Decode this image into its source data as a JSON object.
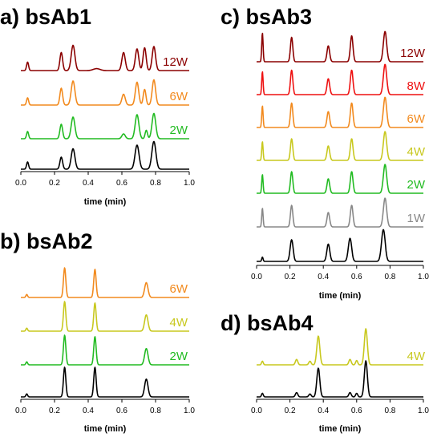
{
  "colors": {
    "12W": "#8b0000",
    "8W": "#ee1111",
    "6W": "#f28a1e",
    "4W": "#c8c81e",
    "2W": "#22bb22",
    "1W": "#888888",
    "base": "#000000"
  },
  "chart_data": [
    {
      "id": "a",
      "type": "line",
      "title": "a) bsAb1",
      "xlabel": "time (min)",
      "xlim": [
        0,
        1.0
      ],
      "xticks": [
        "0.0",
        "0.2",
        "0.4",
        "0.6",
        "0.8",
        "1.0"
      ],
      "series": [
        {
          "name": "12W",
          "color": "12W",
          "peaks": [
            [
              0.04,
              0.35,
              0.006
            ],
            [
              0.24,
              0.75,
              0.008
            ],
            [
              0.31,
              1.05,
              0.011
            ],
            [
              0.45,
              0.08,
              0.02
            ],
            [
              0.61,
              0.75,
              0.01
            ],
            [
              0.69,
              0.9,
              0.01
            ],
            [
              0.735,
              0.95,
              0.009
            ],
            [
              0.79,
              1.0,
              0.01
            ]
          ]
        },
        {
          "name": "6W",
          "color": "6W",
          "peaks": [
            [
              0.04,
              0.3,
              0.006
            ],
            [
              0.24,
              0.7,
              0.008
            ],
            [
              0.31,
              1.0,
              0.011
            ],
            [
              0.61,
              0.45,
              0.01
            ],
            [
              0.69,
              0.95,
              0.01
            ],
            [
              0.735,
              0.65,
              0.008
            ],
            [
              0.79,
              1.05,
              0.01
            ]
          ]
        },
        {
          "name": "2W",
          "color": "2W",
          "peaks": [
            [
              0.04,
              0.3,
              0.006
            ],
            [
              0.24,
              0.6,
              0.008
            ],
            [
              0.31,
              0.9,
              0.011
            ],
            [
              0.61,
              0.2,
              0.01
            ],
            [
              0.69,
              1.0,
              0.011
            ],
            [
              0.745,
              0.35,
              0.007
            ],
            [
              0.79,
              1.05,
              0.011
            ]
          ]
        },
        {
          "name": "",
          "color": "base",
          "peaks": [
            [
              0.04,
              0.3,
              0.006
            ],
            [
              0.24,
              0.5,
              0.008
            ],
            [
              0.31,
              0.85,
              0.011
            ],
            [
              0.69,
              1.0,
              0.012
            ],
            [
              0.79,
              1.15,
              0.012
            ]
          ]
        }
      ]
    },
    {
      "id": "b",
      "type": "line",
      "title": "b) bsAb2",
      "xlabel": "time (min)",
      "xlim": [
        0,
        1.0
      ],
      "xticks": [
        "0.0",
        "0.2",
        "0.4",
        "0.6",
        "0.8",
        "1.0"
      ],
      "series": [
        {
          "name": "6W",
          "color": "6W",
          "peaks": [
            [
              0.035,
              0.1,
              0.005
            ],
            [
              0.26,
              1.0,
              0.007
            ],
            [
              0.44,
              0.95,
              0.007
            ],
            [
              0.745,
              0.5,
              0.01
            ]
          ]
        },
        {
          "name": "4W",
          "color": "4W",
          "peaks": [
            [
              0.035,
              0.1,
              0.005
            ],
            [
              0.26,
              1.0,
              0.007
            ],
            [
              0.44,
              0.95,
              0.007
            ],
            [
              0.745,
              0.55,
              0.01
            ]
          ]
        },
        {
          "name": "2W",
          "color": "2W",
          "peaks": [
            [
              0.035,
              0.1,
              0.005
            ],
            [
              0.26,
              1.0,
              0.007
            ],
            [
              0.44,
              0.95,
              0.007
            ],
            [
              0.745,
              0.55,
              0.01
            ]
          ]
        },
        {
          "name": "",
          "color": "base",
          "peaks": [
            [
              0.035,
              0.1,
              0.005
            ],
            [
              0.26,
              1.0,
              0.007
            ],
            [
              0.44,
              1.0,
              0.007
            ],
            [
              0.745,
              0.6,
              0.01
            ]
          ]
        }
      ]
    },
    {
      "id": "c",
      "type": "line",
      "title": "c) bsAb3",
      "xlabel": "time (min)",
      "xlim": [
        0,
        1.0
      ],
      "xticks": [
        "0.0",
        "0.2",
        "0.4",
        "0.6",
        "0.8",
        "1.0"
      ],
      "series": [
        {
          "name": "12W",
          "color": "12W",
          "peaks": [
            [
              0.035,
              1.0,
              0.004
            ],
            [
              0.21,
              0.85,
              0.007
            ],
            [
              0.43,
              0.55,
              0.008
            ],
            [
              0.57,
              0.9,
              0.008
            ],
            [
              0.77,
              1.05,
              0.01
            ]
          ]
        },
        {
          "name": "8W",
          "color": "8W",
          "peaks": [
            [
              0.035,
              0.8,
              0.004
            ],
            [
              0.21,
              0.85,
              0.007
            ],
            [
              0.43,
              0.55,
              0.008
            ],
            [
              0.57,
              0.85,
              0.008
            ],
            [
              0.77,
              1.05,
              0.01
            ]
          ]
        },
        {
          "name": "6W",
          "color": "6W",
          "peaks": [
            [
              0.035,
              0.75,
              0.004
            ],
            [
              0.21,
              0.85,
              0.007
            ],
            [
              0.43,
              0.55,
              0.008
            ],
            [
              0.57,
              0.85,
              0.008
            ],
            [
              0.77,
              1.05,
              0.01
            ]
          ]
        },
        {
          "name": "4W",
          "color": "4W",
          "peaks": [
            [
              0.035,
              0.65,
              0.004
            ],
            [
              0.21,
              0.75,
              0.007
            ],
            [
              0.43,
              0.5,
              0.008
            ],
            [
              0.57,
              0.75,
              0.008
            ],
            [
              0.77,
              1.0,
              0.01
            ]
          ]
        },
        {
          "name": "2W",
          "color": "2W",
          "peaks": [
            [
              0.035,
              0.65,
              0.004
            ],
            [
              0.21,
              0.75,
              0.007
            ],
            [
              0.43,
              0.5,
              0.008
            ],
            [
              0.57,
              0.75,
              0.008
            ],
            [
              0.77,
              1.0,
              0.01
            ]
          ]
        },
        {
          "name": "1W",
          "color": "1W",
          "peaks": [
            [
              0.035,
              0.65,
              0.004
            ],
            [
              0.21,
              0.75,
              0.007
            ],
            [
              0.43,
              0.5,
              0.008
            ],
            [
              0.57,
              0.75,
              0.008
            ],
            [
              0.77,
              1.0,
              0.01
            ]
          ]
        },
        {
          "name": "",
          "color": "base",
          "peaks": [
            [
              0.035,
              0.15,
              0.004
            ],
            [
              0.21,
              0.75,
              0.009
            ],
            [
              0.43,
              0.6,
              0.009
            ],
            [
              0.56,
              0.8,
              0.01
            ],
            [
              0.76,
              1.1,
              0.011
            ]
          ]
        }
      ]
    },
    {
      "id": "d",
      "type": "line",
      "title": "d) bsAb4",
      "xlabel": "time (min)",
      "xlim": [
        0,
        1.0
      ],
      "xticks": [
        "0.0",
        "0.2",
        "0.4",
        "0.6",
        "0.8",
        "1.0"
      ],
      "series": [
        {
          "name": "4W",
          "color": "4W",
          "peaks": [
            [
              0.035,
              0.1,
              0.005
            ],
            [
              0.24,
              0.15,
              0.007
            ],
            [
              0.32,
              0.1,
              0.007
            ],
            [
              0.37,
              0.8,
              0.009
            ],
            [
              0.56,
              0.15,
              0.007
            ],
            [
              0.6,
              0.12,
              0.006
            ],
            [
              0.655,
              1.0,
              0.009
            ]
          ]
        },
        {
          "name": "",
          "color": "base",
          "peaks": [
            [
              0.035,
              0.1,
              0.005
            ],
            [
              0.24,
              0.12,
              0.007
            ],
            [
              0.32,
              0.08,
              0.007
            ],
            [
              0.37,
              0.8,
              0.009
            ],
            [
              0.56,
              0.12,
              0.007
            ],
            [
              0.6,
              0.1,
              0.006
            ],
            [
              0.655,
              1.0,
              0.009
            ]
          ]
        }
      ]
    }
  ]
}
